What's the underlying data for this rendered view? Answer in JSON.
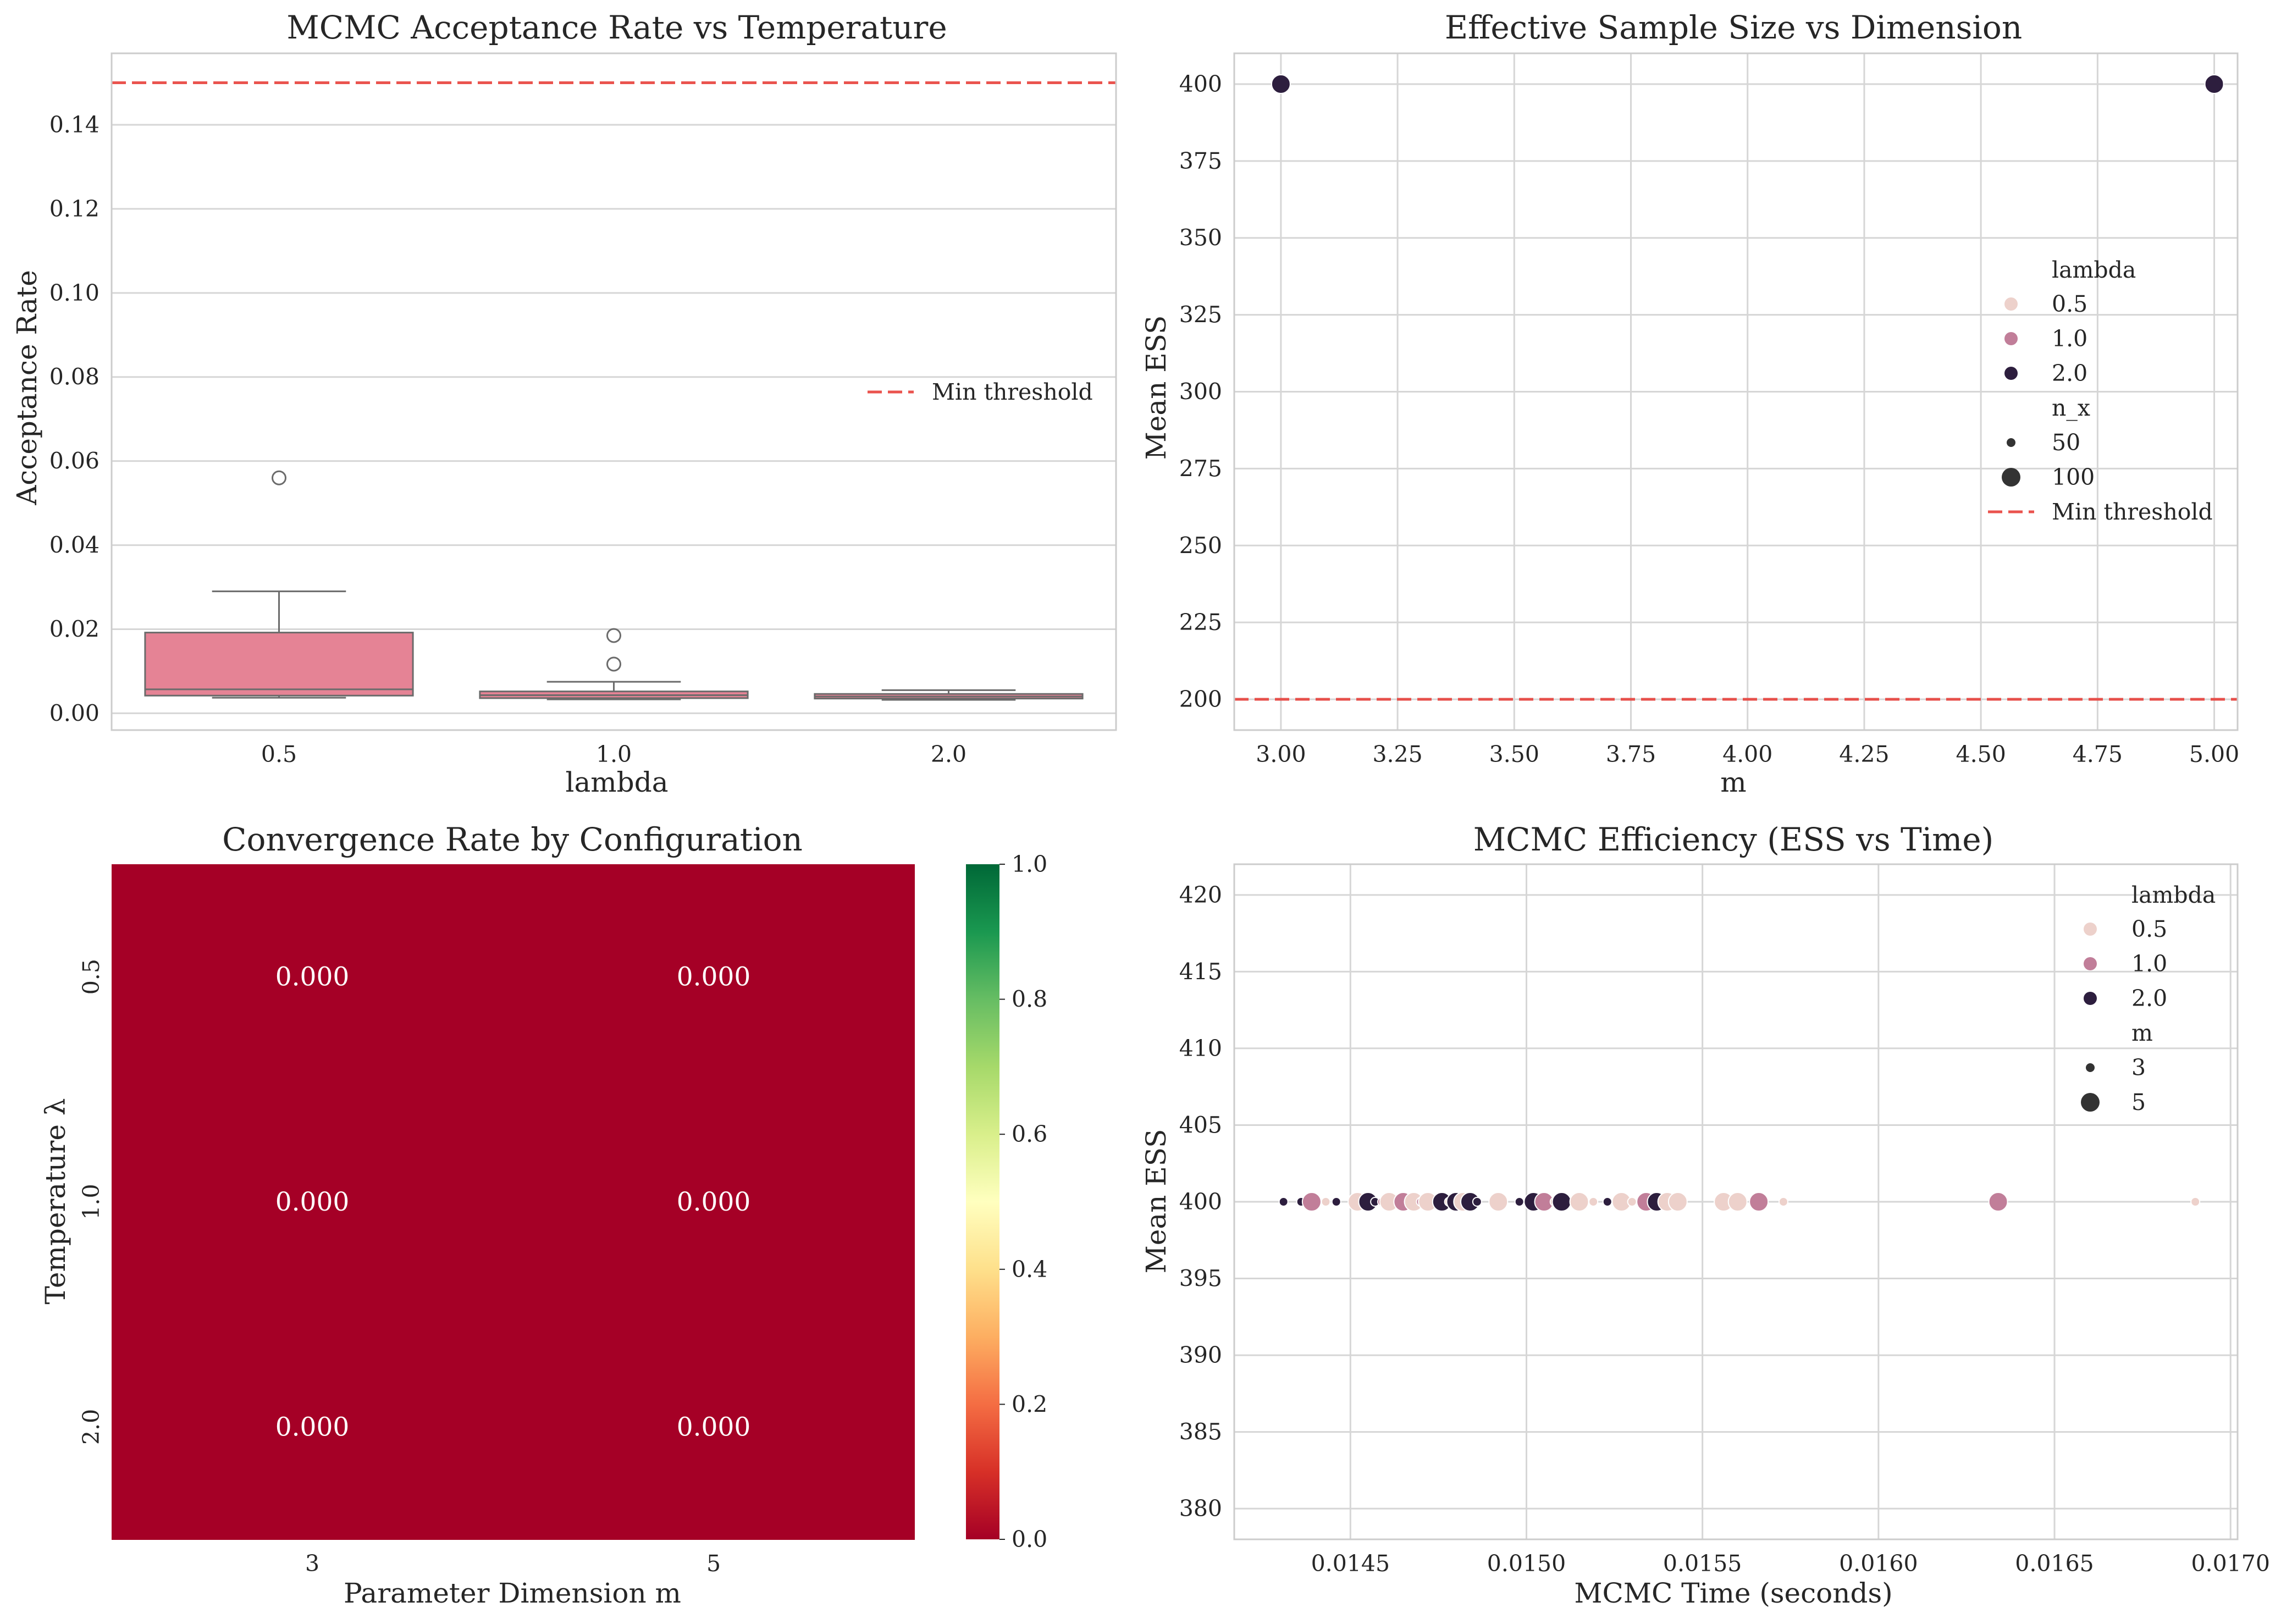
{
  "colors": {
    "threshold": "#e8413b",
    "box_fill": "#e58395",
    "lambda_0_5": "#edd1cb",
    "lambda_1_0": "#c17e99",
    "lambda_2_0": "#2d1e3e",
    "heat_cell": "#a50026",
    "grid": "#d6d6d6",
    "frame": "#cccccc"
  },
  "chart_data": [
    {
      "type": "box",
      "title": "MCMC Acceptance Rate vs Temperature",
      "xlabel": "lambda",
      "ylabel": "Acceptance Rate",
      "categories": [
        "0.5",
        "1.0",
        "2.0"
      ],
      "ylim": [
        -0.004,
        0.157
      ],
      "yticks": [
        0.0,
        0.02,
        0.04,
        0.06,
        0.08,
        0.1,
        0.12,
        0.14
      ],
      "ytick_labels": [
        "0.00",
        "0.02",
        "0.04",
        "0.06",
        "0.08",
        "0.10",
        "0.12",
        "0.14"
      ],
      "boxes": [
        {
          "category": "0.5",
          "q1": 0.0042,
          "median": 0.0057,
          "q3": 0.0192,
          "whisker_low": 0.0037,
          "whisker_high": 0.029,
          "outliers": [
            0.056
          ]
        },
        {
          "category": "1.0",
          "q1": 0.0036,
          "median": 0.0043,
          "q3": 0.0052,
          "whisker_low": 0.0033,
          "whisker_high": 0.0075,
          "outliers": [
            0.0117,
            0.0185
          ]
        },
        {
          "category": "2.0",
          "q1": 0.0035,
          "median": 0.004,
          "q3": 0.0046,
          "whisker_low": 0.0032,
          "whisker_high": 0.0055,
          "outliers": []
        }
      ],
      "threshold": {
        "value": 0.15,
        "label": "Min threshold"
      },
      "legend_position": "center-right",
      "grid": true
    },
    {
      "type": "scatter",
      "title": "Effective Sample Size vs Dimension",
      "xlabel": "m",
      "ylabel": "Mean ESS",
      "xlim": [
        2.9,
        5.05
      ],
      "ylim": [
        190,
        410
      ],
      "xticks": [
        3.0,
        3.25,
        3.5,
        3.75,
        4.0,
        4.25,
        4.5,
        4.75,
        5.0
      ],
      "xtick_labels": [
        "3.00",
        "3.25",
        "3.50",
        "3.75",
        "4.00",
        "4.25",
        "4.50",
        "4.75",
        "5.00"
      ],
      "yticks": [
        200,
        225,
        250,
        275,
        300,
        325,
        350,
        375,
        400
      ],
      "ytick_labels": [
        "200",
        "225",
        "250",
        "275",
        "300",
        "325",
        "350",
        "375",
        "400"
      ],
      "points": [
        {
          "x": 3.0,
          "y": 400,
          "lambda": "2.0",
          "n_x": "100"
        },
        {
          "x": 5.0,
          "y": 400,
          "lambda": "2.0",
          "n_x": "100"
        }
      ],
      "threshold": {
        "value": 200,
        "label": "Min threshold"
      },
      "legend": {
        "hue_title": "lambda",
        "hue_entries": [
          "0.5",
          "1.0",
          "2.0"
        ],
        "size_title": "n_x",
        "size_entries": [
          "50",
          "100"
        ],
        "line_entry": "Min threshold"
      },
      "legend_position": "center-right",
      "grid": true
    },
    {
      "type": "heatmap",
      "title": "Convergence Rate by Configuration",
      "xlabel": "Parameter Dimension m",
      "ylabel": "Temperature λ",
      "x_categories": [
        "3",
        "5"
      ],
      "y_categories": [
        "0.5",
        "1.0",
        "2.0"
      ],
      "values": [
        [
          0.0,
          0.0
        ],
        [
          0.0,
          0.0
        ],
        [
          0.0,
          0.0
        ]
      ],
      "value_labels": [
        [
          "0.000",
          "0.000"
        ],
        [
          "0.000",
          "0.000"
        ],
        [
          "0.000",
          "0.000"
        ]
      ],
      "colormap": "RdYlGn",
      "colorbar_ticks": [
        "0.0",
        "0.2",
        "0.4",
        "0.6",
        "0.8",
        "1.0"
      ],
      "vmin": 0.0,
      "vmax": 1.0
    },
    {
      "type": "scatter",
      "title": "MCMC Efficiency (ESS vs Time)",
      "xlabel": "MCMC Time (seconds)",
      "ylabel": "Mean ESS",
      "xlim": [
        0.01417,
        0.01702
      ],
      "ylim": [
        378,
        422
      ],
      "xticks": [
        0.0145,
        0.015,
        0.0155,
        0.016,
        0.0165,
        0.017
      ],
      "xtick_labels": [
        "0.0145",
        "0.0150",
        "0.0155",
        "0.0160",
        "0.0165",
        "0.0170"
      ],
      "yticks": [
        380,
        385,
        390,
        395,
        400,
        405,
        410,
        415,
        420
      ],
      "ytick_labels": [
        "380",
        "385",
        "390",
        "395",
        "400",
        "405",
        "410",
        "415",
        "420"
      ],
      "points": [
        {
          "x": 0.01431,
          "y": 400,
          "lambda": "2.0",
          "m": "3"
        },
        {
          "x": 0.01436,
          "y": 400,
          "lambda": "2.0",
          "m": "3"
        },
        {
          "x": 0.01439,
          "y": 400,
          "lambda": "1.0",
          "m": "5"
        },
        {
          "x": 0.01443,
          "y": 400,
          "lambda": "0.5",
          "m": "3"
        },
        {
          "x": 0.01446,
          "y": 400,
          "lambda": "2.0",
          "m": "3"
        },
        {
          "x": 0.01452,
          "y": 400,
          "lambda": "0.5",
          "m": "5"
        },
        {
          "x": 0.01455,
          "y": 400,
          "lambda": "2.0",
          "m": "5"
        },
        {
          "x": 0.01457,
          "y": 400,
          "lambda": "2.0",
          "m": "3"
        },
        {
          "x": 0.01459,
          "y": 400,
          "lambda": "1.0",
          "m": "3"
        },
        {
          "x": 0.01461,
          "y": 400,
          "lambda": "0.5",
          "m": "5"
        },
        {
          "x": 0.01465,
          "y": 400,
          "lambda": "1.0",
          "m": "5"
        },
        {
          "x": 0.01468,
          "y": 400,
          "lambda": "0.5",
          "m": "5"
        },
        {
          "x": 0.0147,
          "y": 400,
          "lambda": "1.0",
          "m": "3"
        },
        {
          "x": 0.01472,
          "y": 400,
          "lambda": "0.5",
          "m": "5"
        },
        {
          "x": 0.01476,
          "y": 400,
          "lambda": "2.0",
          "m": "5"
        },
        {
          "x": 0.01478,
          "y": 400,
          "lambda": "0.5",
          "m": "3"
        },
        {
          "x": 0.0148,
          "y": 400,
          "lambda": "2.0",
          "m": "5"
        },
        {
          "x": 0.01482,
          "y": 400,
          "lambda": "0.5",
          "m": "5"
        },
        {
          "x": 0.01484,
          "y": 400,
          "lambda": "2.0",
          "m": "5"
        },
        {
          "x": 0.01486,
          "y": 400,
          "lambda": "2.0",
          "m": "3"
        },
        {
          "x": 0.01492,
          "y": 400,
          "lambda": "0.5",
          "m": "5"
        },
        {
          "x": 0.01498,
          "y": 400,
          "lambda": "2.0",
          "m": "3"
        },
        {
          "x": 0.01502,
          "y": 400,
          "lambda": "2.0",
          "m": "5"
        },
        {
          "x": 0.01505,
          "y": 400,
          "lambda": "1.0",
          "m": "5"
        },
        {
          "x": 0.01508,
          "y": 400,
          "lambda": "0.5",
          "m": "3"
        },
        {
          "x": 0.0151,
          "y": 400,
          "lambda": "2.0",
          "m": "5"
        },
        {
          "x": 0.01515,
          "y": 400,
          "lambda": "0.5",
          "m": "5"
        },
        {
          "x": 0.01519,
          "y": 400,
          "lambda": "0.5",
          "m": "3"
        },
        {
          "x": 0.01523,
          "y": 400,
          "lambda": "2.0",
          "m": "3"
        },
        {
          "x": 0.01527,
          "y": 400,
          "lambda": "0.5",
          "m": "5"
        },
        {
          "x": 0.0153,
          "y": 400,
          "lambda": "0.5",
          "m": "3"
        },
        {
          "x": 0.01534,
          "y": 400,
          "lambda": "1.0",
          "m": "5"
        },
        {
          "x": 0.01537,
          "y": 400,
          "lambda": "2.0",
          "m": "5"
        },
        {
          "x": 0.0154,
          "y": 400,
          "lambda": "0.5",
          "m": "5"
        },
        {
          "x": 0.01543,
          "y": 400,
          "lambda": "0.5",
          "m": "5"
        },
        {
          "x": 0.01556,
          "y": 400,
          "lambda": "0.5",
          "m": "5"
        },
        {
          "x": 0.0156,
          "y": 400,
          "lambda": "0.5",
          "m": "5"
        },
        {
          "x": 0.01566,
          "y": 400,
          "lambda": "1.0",
          "m": "5"
        },
        {
          "x": 0.01573,
          "y": 400,
          "lambda": "0.5",
          "m": "3"
        },
        {
          "x": 0.01634,
          "y": 400,
          "lambda": "1.0",
          "m": "5"
        },
        {
          "x": 0.0169,
          "y": 400,
          "lambda": "0.5",
          "m": "3"
        }
      ],
      "legend": {
        "hue_title": "lambda",
        "hue_entries": [
          "0.5",
          "1.0",
          "2.0"
        ],
        "size_title": "m",
        "size_entries": [
          "3",
          "5"
        ]
      },
      "legend_position": "top-right",
      "grid": true
    }
  ]
}
